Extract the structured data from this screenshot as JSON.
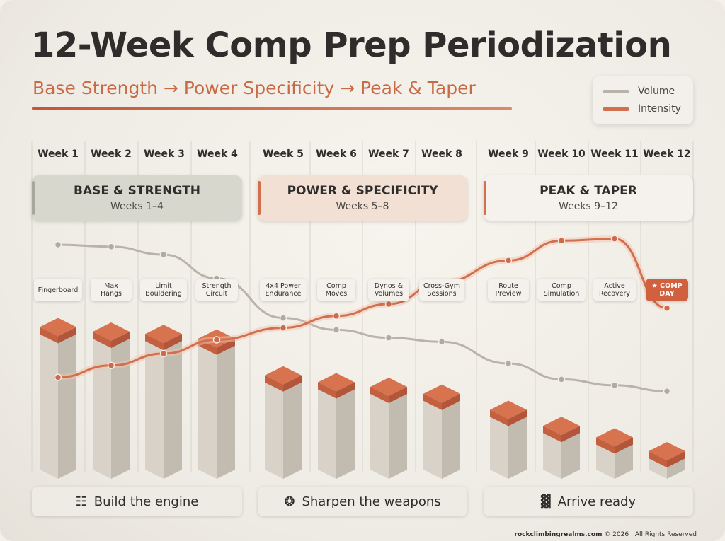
{
  "title": "12-Week Comp Prep Periodization",
  "subtitle": "Base Strength → Power Specificity → Peak & Taper",
  "legend": {
    "volume_label": "Volume",
    "intensity_label": "Intensity"
  },
  "colors": {
    "volume": "#b9b3aa",
    "intensity": "#d1704f",
    "accent": "#c96a46",
    "base_phase": "#d7d6cc",
    "power_phase": "#f1dfd2",
    "peak_phase": "#f4f1ec"
  },
  "weeks": [
    "Week 1",
    "Week 2",
    "Week 3",
    "Week 4",
    "Week 5",
    "Week 6",
    "Week 7",
    "Week 8",
    "Week 9",
    "Week 10",
    "Week 11",
    "Week 12"
  ],
  "phases": [
    {
      "name": "BASE & STRENGTH",
      "weeks": "Weeks 1–4"
    },
    {
      "name": "POWER & SPECIFICITY",
      "weeks": "Weeks 5–8"
    },
    {
      "name": "PEAK & TAPER",
      "weeks": "Weeks 9–12"
    }
  ],
  "sessions": [
    {
      "line1": "Fingerboard",
      "line2": ""
    },
    {
      "line1": "Max",
      "line2": "Hangs"
    },
    {
      "line1": "Limit",
      "line2": "Bouldering"
    },
    {
      "line1": "Strength",
      "line2": "Circuit"
    },
    {
      "line1": "4x4 Power",
      "line2": "Endurance"
    },
    {
      "line1": "Comp",
      "line2": "Moves"
    },
    {
      "line1": "Dynos &",
      "line2": "Volumes"
    },
    {
      "line1": "Cross-Gym",
      "line2": "Sessions"
    },
    {
      "line1": "Route",
      "line2": "Preview"
    },
    {
      "line1": "Comp",
      "line2": "Simulation"
    },
    {
      "line1": "Active",
      "line2": "Recovery"
    },
    {
      "line1": "★ COMP",
      "line2": "DAY"
    }
  ],
  "summaries": [
    {
      "icon": "engine-icon",
      "glyph": "☷",
      "label": "Build the engine"
    },
    {
      "icon": "climber-icon",
      "glyph": "❂",
      "label": "Sharpen the weapons"
    },
    {
      "icon": "podium-icon",
      "glyph": "▓",
      "label": "Arrive ready"
    }
  ],
  "footer": {
    "site": "rockclimbingrealms.com",
    "rights": " © 2026 | All Rights Reserved"
  },
  "chart_data": {
    "type": "line",
    "x": [
      "Week 1",
      "Week 2",
      "Week 3",
      "Week 4",
      "Week 5",
      "Week 6",
      "Week 7",
      "Week 8",
      "Week 9",
      "Week 10",
      "Week 11",
      "Week 12"
    ],
    "series": [
      {
        "name": "Volume",
        "values": [
          95,
          94,
          90,
          78,
          58,
          52,
          48,
          46,
          35,
          27,
          24,
          21
        ]
      },
      {
        "name": "Intensity",
        "values": [
          28,
          34,
          40,
          47,
          53,
          59,
          65,
          76,
          87,
          97,
          98,
          63
        ]
      },
      {
        "name": "",
        "values": [
          62,
          60,
          59,
          57,
          41,
          38,
          36,
          33,
          26,
          19,
          14,
          8
        ]
      }
    ],
    "ylim": [
      0,
      100
    ],
    "grid": true,
    "legend": "top-right"
  }
}
